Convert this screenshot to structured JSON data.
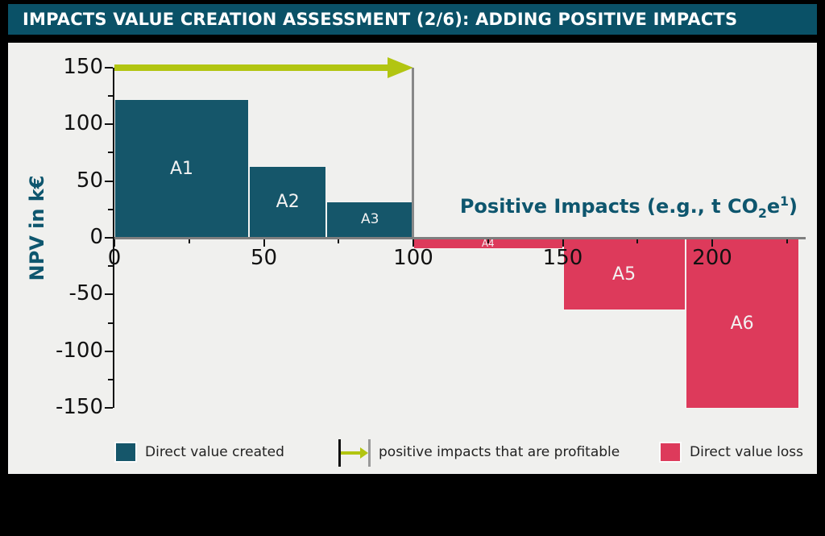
{
  "title": "IMPACTS VALUE CREATION ASSESSMENT (2/6): ADDING POSITIVE IMPACTS",
  "colors": {
    "title_bar_bg": "#0a5167",
    "panel_bg": "#f0f0ee",
    "positive_bar": "#15566a",
    "negative_bar": "#dd3a5b",
    "arrow_green": "#b2c511",
    "axis_gray": "#7f7f7f",
    "drop_line_gray": "#888888",
    "teal_text": "#0e566e"
  },
  "chart_data": {
    "type": "bar",
    "title": "IMPACTS VALUE CREATION ASSESSMENT (2/6): ADDING POSITIVE IMPACTS",
    "xlabel": {
      "prefix": "Positive Impacts (e.g., t CO",
      "sub": "2",
      "mid": "e",
      "sup": "1",
      "suffix": ")"
    },
    "ylabel": "NPV in k€",
    "xlim": [
      0,
      231
    ],
    "ylim": [
      -150,
      150
    ],
    "grid": false,
    "x_major_ticks": [
      0,
      50,
      100,
      150,
      200
    ],
    "x_minor_ticks": [
      25,
      75,
      125,
      175,
      225
    ],
    "y_major_ticks": [
      150,
      100,
      50,
      0,
      -50,
      -100,
      -150
    ],
    "y_minor_ticks": [
      125,
      75,
      25,
      -25,
      -75,
      -125
    ],
    "bars": [
      {
        "label": "A1",
        "x_start": 0,
        "x_end": 45,
        "value": 122,
        "kind": "positive",
        "label_size": 22
      },
      {
        "label": "A2",
        "x_start": 45,
        "x_end": 71,
        "value": 63,
        "kind": "positive",
        "label_size": 22
      },
      {
        "label": "A3",
        "x_start": 71,
        "x_end": 100,
        "value": 32,
        "kind": "positive",
        "label_size": 17
      },
      {
        "label": "A4",
        "x_start": 100,
        "x_end": 150,
        "value": -10,
        "kind": "negative",
        "label_size": 12
      },
      {
        "label": "A5",
        "x_start": 150,
        "x_end": 191,
        "value": -64,
        "kind": "negative",
        "label_size": 22
      },
      {
        "label": "A6",
        "x_start": 191,
        "x_end": 229,
        "value": -151,
        "kind": "negative",
        "label_size": 22
      }
    ],
    "annotation_arrow": {
      "y": 150,
      "x_start": 0,
      "x_end": 100,
      "meaning": "positive impacts that are profitable"
    }
  },
  "legend": {
    "items": [
      {
        "label": "Direct value created",
        "swatch": "positive"
      },
      {
        "label": "positive impacts that are profitable",
        "swatch": "arrow"
      },
      {
        "label": "Direct value loss",
        "swatch": "negative"
      }
    ]
  }
}
